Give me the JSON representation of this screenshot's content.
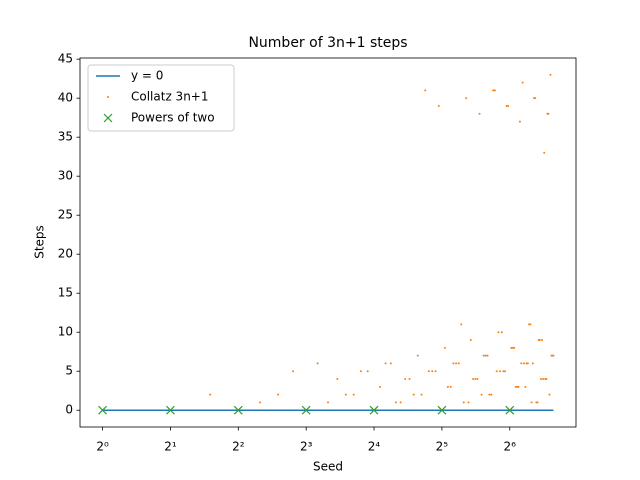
{
  "chart_data": {
    "type": "scatter",
    "title": "Number of 3n+1 steps",
    "x_label": "Seed",
    "y_label": "Steps",
    "x_scale": "log2",
    "xlim": [
      0.794,
      125.9
    ],
    "ylim": [
      -2.15,
      45.15
    ],
    "xticks": [
      {
        "value": 1,
        "label": "2⁰"
      },
      {
        "value": 2,
        "label": "2¹"
      },
      {
        "value": 4,
        "label": "2²"
      },
      {
        "value": 8,
        "label": "2³"
      },
      {
        "value": 16,
        "label": "2⁴"
      },
      {
        "value": 32,
        "label": "2⁵"
      },
      {
        "value": 64,
        "label": "2⁶"
      }
    ],
    "yticks": [
      0,
      5,
      10,
      15,
      20,
      25,
      30,
      35,
      40,
      45
    ],
    "legend": "upper left",
    "series": [
      {
        "name": "y = 0",
        "color": "#1f77b4",
        "style": "line",
        "x": [
          1,
          100
        ],
        "values": [
          0,
          0
        ]
      },
      {
        "name": "Collatz 3n+1",
        "color": "#ff7f0e",
        "style": "dots",
        "x": [
          1,
          2,
          3,
          4,
          5,
          6,
          7,
          8,
          9,
          10,
          11,
          12,
          13,
          14,
          15,
          16,
          17,
          18,
          19,
          20,
          21,
          22,
          23,
          24,
          25,
          26,
          27,
          28,
          29,
          30,
          31,
          32,
          33,
          34,
          35,
          36,
          37,
          38,
          39,
          40,
          41,
          42,
          43,
          44,
          45,
          46,
          47,
          48,
          49,
          50,
          51,
          52,
          53,
          54,
          55,
          56,
          57,
          58,
          59,
          60,
          61,
          62,
          63,
          64,
          65,
          66,
          67,
          68,
          69,
          70,
          71,
          72,
          73,
          74,
          75,
          76,
          77,
          78,
          79,
          80,
          81,
          82,
          83,
          84,
          85,
          86,
          87,
          88,
          89,
          90,
          91,
          92,
          93,
          94,
          95,
          96,
          97,
          98,
          99,
          100
        ],
        "values": [
          0,
          0,
          2,
          0,
          1,
          2,
          5,
          0,
          6,
          1,
          4,
          2,
          2,
          5,
          5,
          0,
          3,
          6,
          6,
          1,
          1,
          4,
          4,
          2,
          7,
          2,
          41,
          5,
          5,
          5,
          39,
          0,
          8,
          3,
          3,
          6,
          6,
          6,
          11,
          1,
          40,
          1,
          9,
          4,
          4,
          4,
          38,
          2,
          7,
          7,
          7,
          2,
          2,
          41,
          41,
          5,
          10,
          5,
          10,
          5,
          5,
          39,
          39,
          0,
          8,
          8,
          8,
          3,
          3,
          3,
          37,
          6,
          42,
          6,
          3,
          6,
          6,
          11,
          11,
          1,
          6,
          40,
          40,
          1,
          1,
          9,
          9,
          4,
          9,
          4,
          33,
          4,
          4,
          38,
          38,
          2,
          43,
          7,
          7,
          7
        ]
      },
      {
        "name": "Powers of two",
        "color": "#2ca02c",
        "style": "x",
        "x": [
          1,
          2,
          4,
          8,
          16,
          32,
          64
        ],
        "values": [
          0,
          0,
          0,
          0,
          0,
          0,
          0
        ]
      }
    ]
  }
}
